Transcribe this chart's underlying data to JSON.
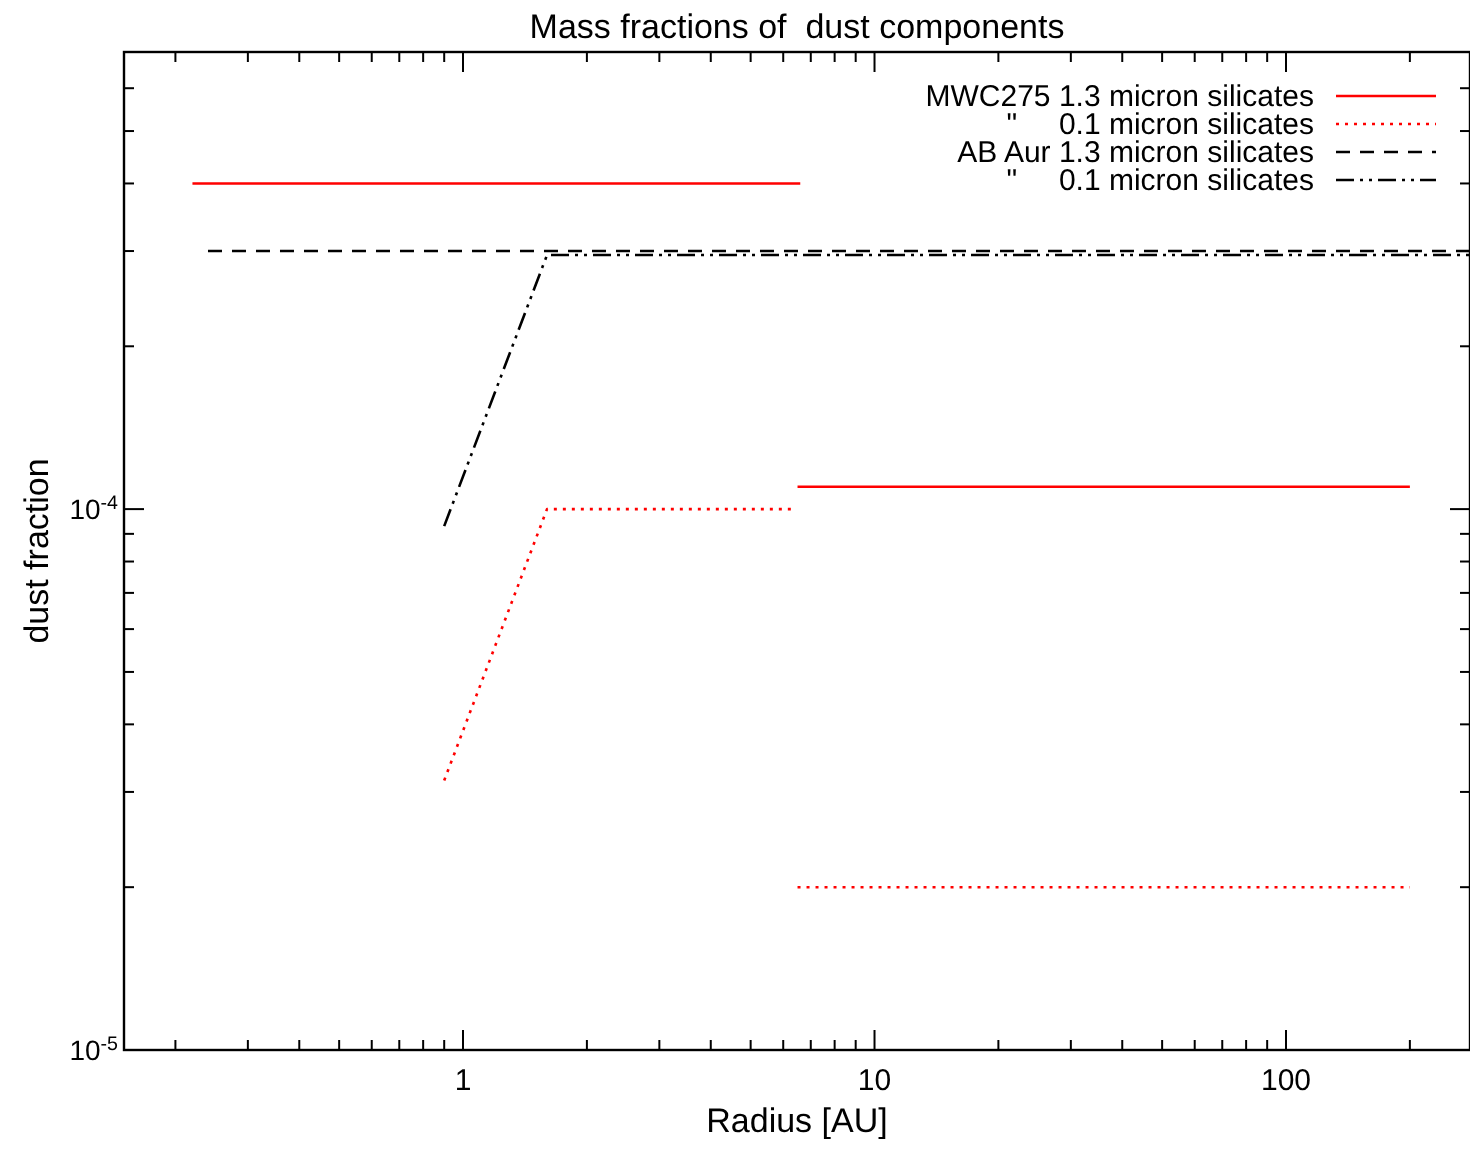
{
  "chart_data": {
    "type": "line",
    "title": "Mass fractions of  dust components",
    "xlabel": "Radius [AU]",
    "ylabel": "dust fraction",
    "log": "xy",
    "xlim": [
      0.15,
      280
    ],
    "ylim": [
      1e-05,
      0.0007
    ],
    "xticks": [
      {
        "value": 0.2,
        "label": null
      },
      {
        "value": 0.3,
        "label": null
      },
      {
        "value": 0.4,
        "label": null
      },
      {
        "value": 0.5,
        "label": null
      },
      {
        "value": 0.6,
        "label": null
      },
      {
        "value": 0.7,
        "label": null
      },
      {
        "value": 0.8,
        "label": null
      },
      {
        "value": 0.9,
        "label": null
      },
      1,
      {
        "value": 2,
        "label": null
      },
      {
        "value": 3,
        "label": null
      },
      {
        "value": 4,
        "label": null
      },
      {
        "value": 5,
        "label": null
      },
      {
        "value": 6,
        "label": null
      },
      {
        "value": 7,
        "label": null
      },
      {
        "value": 8,
        "label": null
      },
      {
        "value": 9,
        "label": null
      },
      10,
      {
        "value": 20,
        "label": null
      },
      {
        "value": 30,
        "label": null
      },
      {
        "value": 40,
        "label": null
      },
      {
        "value": 50,
        "label": null
      },
      {
        "value": 60,
        "label": null
      },
      {
        "value": 70,
        "label": null
      },
      {
        "value": 80,
        "label": null
      },
      {
        "value": 90,
        "label": null
      },
      100,
      {
        "value": 200,
        "label": null
      }
    ],
    "yticks": [
      {
        "value": 1e-05,
        "label": "10$^{-5}$"
      },
      {
        "value": 2e-05,
        "label": null
      },
      {
        "value": 3e-05,
        "label": null
      },
      {
        "value": 4e-05,
        "label": null
      },
      {
        "value": 5e-05,
        "label": null
      },
      {
        "value": 6e-05,
        "label": null
      },
      {
        "value": 7e-05,
        "label": null
      },
      {
        "value": 8e-05,
        "label": null
      },
      {
        "value": 9e-05,
        "label": null
      },
      {
        "value": 0.0001,
        "label": "10$^{-4}$"
      },
      {
        "value": 0.0002,
        "label": null
      },
      {
        "value": 0.0003,
        "label": null
      },
      {
        "value": 0.0004,
        "label": null
      },
      {
        "value": 0.0005,
        "label": null
      },
      {
        "value": 0.0006,
        "label": null
      },
      {
        "value": 0.0007,
        "label": null
      }
    ],
    "grid": false,
    "legend": "top right",
    "series": [
      {
        "name": "MWC275 1.3 micron silicates",
        "color": "#ff0000",
        "line_style": "solid",
        "x": [
          0.22,
          6.6,
          null,
          6.5,
          200
        ],
        "values": [
          0.0004,
          0.0004,
          null,
          0.00011,
          0.00011
        ]
      },
      {
        "name": "\"     0.1 micron silicates",
        "color": "#ff0000",
        "line_style": "dotted",
        "x": [
          0.9,
          1.6,
          6.3,
          null,
          6.5,
          200
        ],
        "values": [
          3.15e-05,
          0.0001,
          0.0001,
          null,
          2e-05,
          2e-05
        ]
      },
      {
        "name": "AB Aur 1.3 micron silicates",
        "color": "#000000",
        "line_style": "dashed",
        "x": [
          0.24,
          280
        ],
        "values": [
          0.0003,
          0.0003
        ]
      },
      {
        "name": "\"     0.1 micron silicates",
        "color": "#000000",
        "line_style": "dashdot",
        "x": [
          0.9,
          1.6,
          280
        ],
        "values": [
          9.3e-05,
          0.000295,
          0.000295
        ]
      }
    ]
  }
}
